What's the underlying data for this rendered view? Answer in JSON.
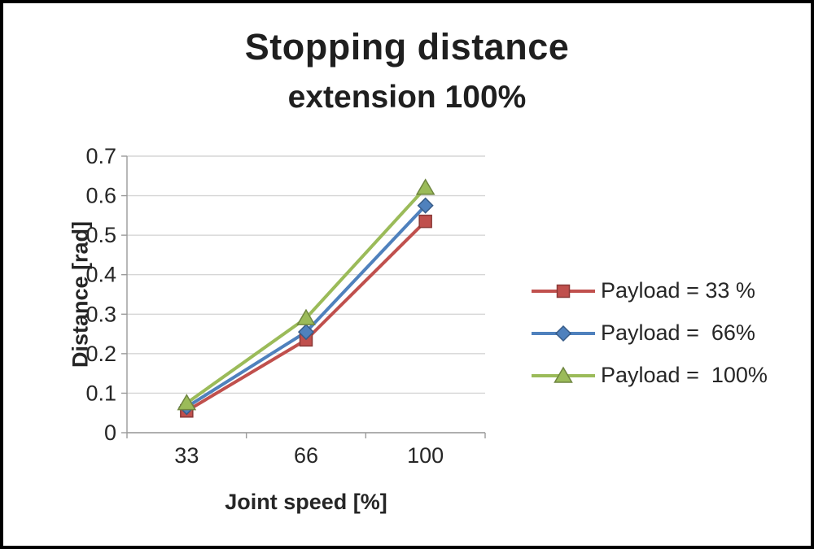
{
  "chart_data": {
    "type": "line",
    "title": "Stopping distance",
    "subtitle": "extension 100%",
    "xlabel": "Joint speed [%]",
    "ylabel": "Distance [rad]",
    "categories": [
      "33",
      "66",
      "100"
    ],
    "ylim": [
      0,
      0.7
    ],
    "ytick_step": 0.1,
    "yticks": [
      "0",
      "0.1",
      "0.2",
      "0.3",
      "0.4",
      "0.5",
      "0.6",
      "0.7"
    ],
    "grid": true,
    "legend_position": "right",
    "colors": {
      "grid": "#d6d6d6",
      "axis": "#9b9b9b",
      "text": "#262626"
    },
    "series": [
      {
        "name": "Payload = 33 %",
        "color": "#c0504d",
        "marker": "square",
        "values": [
          0.055,
          0.235,
          0.535
        ]
      },
      {
        "name": "Payload =  66%",
        "color": "#4f81bd",
        "marker": "diamond",
        "values": [
          0.065,
          0.255,
          0.575
        ]
      },
      {
        "name": "Payload =  100%",
        "color": "#9bbb59",
        "marker": "triangle",
        "values": [
          0.075,
          0.29,
          0.62
        ]
      }
    ]
  }
}
